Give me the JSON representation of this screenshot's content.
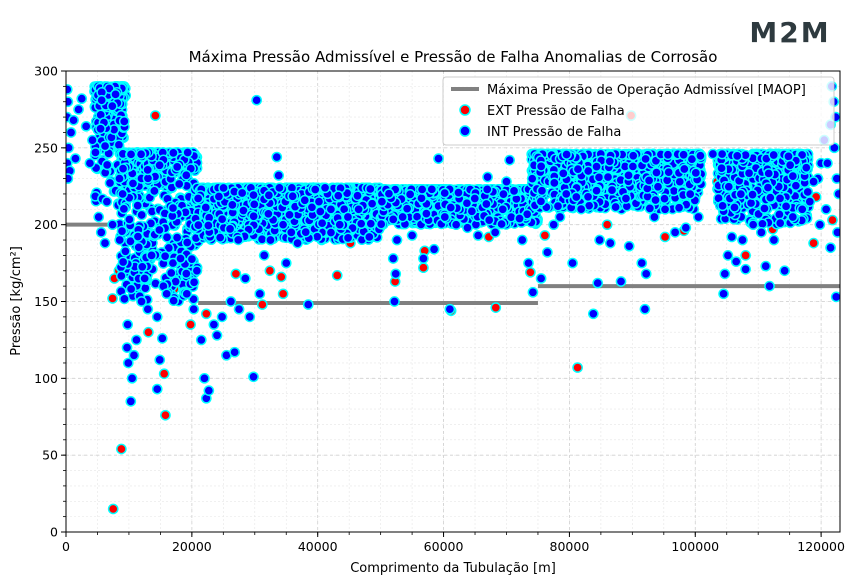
{
  "logo": {
    "text": "M2M"
  },
  "chart_data": {
    "type": "scatter",
    "title": "Máxima Pressão Admissível e Pressão de Falha Anomalias de Corrosão",
    "xlabel": "Comprimento da Tubulação [m]",
    "ylabel": "Pressão [kg/cm²]",
    "xlim": [
      0,
      123000
    ],
    "ylim": [
      0,
      300
    ],
    "xticks": [
      0,
      20000,
      40000,
      60000,
      80000,
      100000,
      120000
    ],
    "yticks": [
      0,
      50,
      100,
      150,
      200,
      250,
      300
    ],
    "grid": true,
    "legend_position": "top-right",
    "colors": {
      "maop": "#808080",
      "ext_fill": "#ff0000",
      "int_fill": "#0000ff",
      "edge": "#00ffff"
    },
    "maop": {
      "name": "Máxima Pressão de Operação Admissível [MAOP]",
      "segments": [
        {
          "x": [
            0,
            9000
          ],
          "y": 200
        },
        {
          "x": [
            9000,
            21000
          ],
          "y": 162
        },
        {
          "x": [
            21000,
            75000
          ],
          "y": 149
        },
        {
          "x": [
            75000,
            123000
          ],
          "y": 160
        }
      ]
    },
    "ext_series": {
      "name": "EXT Pressão de Falha",
      "points": [
        [
          7500,
          15
        ],
        [
          8800,
          54
        ],
        [
          14200,
          271
        ],
        [
          15800,
          76
        ],
        [
          15600,
          103
        ],
        [
          7400,
          152
        ],
        [
          7700,
          165
        ],
        [
          8400,
          170
        ],
        [
          13100,
          130
        ],
        [
          17200,
          158
        ],
        [
          19800,
          135
        ],
        [
          9200,
          198
        ],
        [
          22300,
          142
        ],
        [
          27000,
          168
        ],
        [
          31200,
          148
        ],
        [
          32400,
          170
        ],
        [
          34200,
          166
        ],
        [
          34500,
          155
        ],
        [
          43100,
          167
        ],
        [
          52300,
          163
        ],
        [
          56800,
          172
        ],
        [
          57000,
          183
        ],
        [
          61200,
          144
        ],
        [
          67200,
          192
        ],
        [
          68300,
          146
        ],
        [
          73800,
          169
        ],
        [
          76100,
          193
        ],
        [
          81300,
          107
        ],
        [
          86000,
          200
        ],
        [
          89800,
          271
        ],
        [
          95200,
          192
        ],
        [
          98200,
          196
        ],
        [
          103500,
          228
        ],
        [
          108000,
          180
        ],
        [
          112300,
          197
        ],
        [
          118800,
          188
        ],
        [
          119200,
          218
        ],
        [
          121800,
          203
        ],
        [
          63200,
          201
        ],
        [
          45200,
          188
        ]
      ]
    },
    "int_series": {
      "name": "INT Pressão de Falha",
      "bands": [
        {
          "x": [
            4500,
            9500
          ],
          "top": 290,
          "bottom": 210
        },
        {
          "x": [
            8500,
            21000
          ],
          "top": 247,
          "bottom": 150
        },
        {
          "x": [
            20500,
            50000
          ],
          "top": 224,
          "bottom": 190
        },
        {
          "x": [
            50000,
            75000
          ],
          "top": 223,
          "bottom": 200
        },
        {
          "x": [
            74000,
            101000
          ],
          "top": 246,
          "bottom": 210
        },
        {
          "x": [
            103500,
            118000
          ],
          "top": 246,
          "bottom": 200
        }
      ],
      "points": [
        [
          200,
          288
        ],
        [
          300,
          280
        ],
        [
          150,
          270
        ],
        [
          400,
          250
        ],
        [
          200,
          240
        ],
        [
          600,
          235
        ],
        [
          300,
          230
        ],
        [
          800,
          260
        ],
        [
          1500,
          243
        ],
        [
          1200,
          268
        ],
        [
          2500,
          282
        ],
        [
          3200,
          264
        ],
        [
          2000,
          275
        ],
        [
          4200,
          255
        ],
        [
          3800,
          240
        ],
        [
          5200,
          205
        ],
        [
          5600,
          195
        ],
        [
          6200,
          188
        ],
        [
          6500,
          215
        ],
        [
          7400,
          200
        ],
        [
          8500,
          230
        ],
        [
          9000,
          220
        ],
        [
          9800,
          135
        ],
        [
          9700,
          120
        ],
        [
          9900,
          110
        ],
        [
          10300,
          85
        ],
        [
          10500,
          100
        ],
        [
          10800,
          115
        ],
        [
          11200,
          125
        ],
        [
          12000,
          150
        ],
        [
          12500,
          165
        ],
        [
          13000,
          145
        ],
        [
          13600,
          180
        ],
        [
          14500,
          140
        ],
        [
          14500,
          93
        ],
        [
          14900,
          112
        ],
        [
          15300,
          126
        ],
        [
          16000,
          155
        ],
        [
          17000,
          175
        ],
        [
          18200,
          178
        ],
        [
          19200,
          155
        ],
        [
          20300,
          145
        ],
        [
          20800,
          170
        ],
        [
          21500,
          125
        ],
        [
          22000,
          100
        ],
        [
          22300,
          87
        ],
        [
          22700,
          92
        ],
        [
          23500,
          135
        ],
        [
          24000,
          128
        ],
        [
          24800,
          140
        ],
        [
          25500,
          115
        ],
        [
          26200,
          150
        ],
        [
          26800,
          117
        ],
        [
          27500,
          145
        ],
        [
          28500,
          165
        ],
        [
          29200,
          140
        ],
        [
          29800,
          101
        ],
        [
          30300,
          281
        ],
        [
          30800,
          155
        ],
        [
          31500,
          180
        ],
        [
          32500,
          190
        ],
        [
          33500,
          244
        ],
        [
          33800,
          232
        ],
        [
          34500,
          200
        ],
        [
          35000,
          175
        ],
        [
          35800,
          195
        ],
        [
          36800,
          188
        ],
        [
          38500,
          148
        ],
        [
          40200,
          215
        ],
        [
          42100,
          210
        ],
        [
          43500,
          200
        ],
        [
          44800,
          205
        ],
        [
          46500,
          210
        ],
        [
          48200,
          192
        ],
        [
          50200,
          215
        ],
        [
          52000,
          178
        ],
        [
          52200,
          150
        ],
        [
          52400,
          168
        ],
        [
          52600,
          190
        ],
        [
          53500,
          205
        ],
        [
          55000,
          193
        ],
        [
          56800,
          178
        ],
        [
          58500,
          184
        ],
        [
          59200,
          243
        ],
        [
          60200,
          205
        ],
        [
          61000,
          145
        ],
        [
          62000,
          200
        ],
        [
          63800,
          198
        ],
        [
          65500,
          193
        ],
        [
          67000,
          231
        ],
        [
          68200,
          195
        ],
        [
          69400,
          210
        ],
        [
          70000,
          228
        ],
        [
          70500,
          242
        ],
        [
          71200,
          222
        ],
        [
          72500,
          190
        ],
        [
          73500,
          175
        ],
        [
          74200,
          156
        ],
        [
          75500,
          165
        ],
        [
          76500,
          182
        ],
        [
          77500,
          200
        ],
        [
          78500,
          205
        ],
        [
          79500,
          220
        ],
        [
          80500,
          175
        ],
        [
          83800,
          142
        ],
        [
          84500,
          162
        ],
        [
          84800,
          190
        ],
        [
          86500,
          188
        ],
        [
          88200,
          163
        ],
        [
          89500,
          186
        ],
        [
          91500,
          175
        ],
        [
          92000,
          145
        ],
        [
          92200,
          168
        ],
        [
          93500,
          205
        ],
        [
          95200,
          210
        ],
        [
          96800,
          195
        ],
        [
          98500,
          198
        ],
        [
          100500,
          205
        ],
        [
          102800,
          246
        ],
        [
          104500,
          155
        ],
        [
          104700,
          168
        ],
        [
          105200,
          180
        ],
        [
          105800,
          192
        ],
        [
          106500,
          176
        ],
        [
          107500,
          190
        ],
        [
          108000,
          171
        ],
        [
          109200,
          200
        ],
        [
          110500,
          195
        ],
        [
          111200,
          173
        ],
        [
          111800,
          160
        ],
        [
          112500,
          190
        ],
        [
          113500,
          201
        ],
        [
          114200,
          170
        ],
        [
          115500,
          205
        ],
        [
          117000,
          210
        ],
        [
          118200,
          215
        ],
        [
          119500,
          230
        ],
        [
          120000,
          240
        ],
        [
          120500,
          255
        ],
        [
          121000,
          240
        ],
        [
          121500,
          265
        ],
        [
          121700,
          290
        ],
        [
          122000,
          280
        ],
        [
          122300,
          270
        ],
        [
          122100,
          250
        ],
        [
          122500,
          230
        ],
        [
          122800,
          220
        ],
        [
          122600,
          195
        ],
        [
          122400,
          153
        ],
        [
          121500,
          185
        ],
        [
          120800,
          210
        ],
        [
          119800,
          200
        ],
        [
          118800,
          228
        ]
      ]
    }
  }
}
